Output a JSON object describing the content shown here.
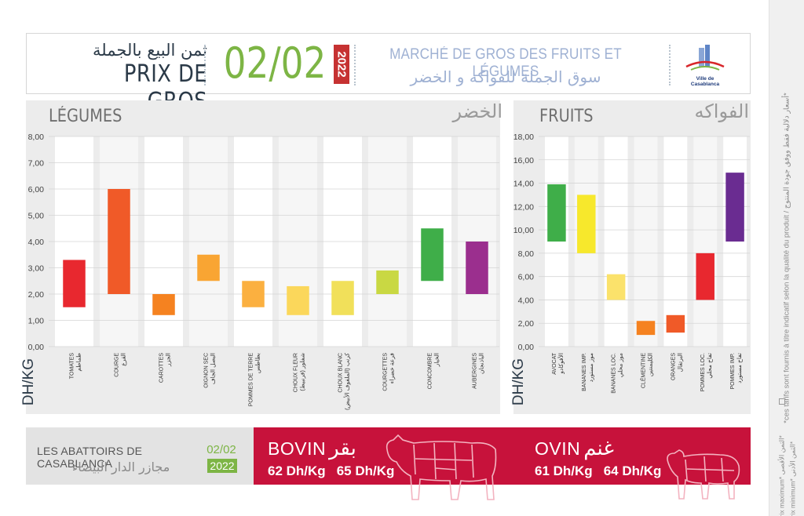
{
  "header": {
    "arabic_title": "ثمن البيع بالجملة",
    "title": "PRIX DE GROS",
    "date": "02/02",
    "year": "2022",
    "market_fr": "MARCHÉ DE GROS DES FRUITS ET LÉGUMES",
    "market_ar": "سوق الجملة للفواكه و الخضر",
    "logo_text": "Ville de Casablanca"
  },
  "legumes": {
    "title_fr": "LÉGUMES",
    "title_ar": "الخضر",
    "unit": "DH/KG"
  },
  "fruits": {
    "title_fr": "FRUITS",
    "title_ar": "الفواكه",
    "unit": "DH/KG"
  },
  "chart_data": [
    {
      "type": "bar",
      "title": "LÉGUMES",
      "ylabel": "DH/KG",
      "ylim": [
        0,
        8
      ],
      "yticks": [
        "0,00",
        "1,00",
        "2,00",
        "3,00",
        "4,00",
        "5,00",
        "6,00",
        "7,00",
        "8,00"
      ],
      "categories": [
        {
          "fr": "TOMATES",
          "ar": "طماطم"
        },
        {
          "fr": "COURGE",
          "ar": "القرع"
        },
        {
          "fr": "CAROTTES",
          "ar": "الجزر"
        },
        {
          "fr": "OIGNON SEC",
          "ar": "البصل الجاف"
        },
        {
          "fr": "POMMES DE TERRE",
          "ar": "بطاطس"
        },
        {
          "fr": "CHOUX FLEUR",
          "ar": "شفلور (قرنبيط)"
        },
        {
          "fr": "CHOUX BLANC",
          "ar": "كرنب (الملفوف الأبيض)"
        },
        {
          "fr": "COURGETTES",
          "ar": "قرعة خضراء"
        },
        {
          "fr": "CONCOMBRE",
          "ar": "الخيار"
        },
        {
          "fr": "AUBERGINES",
          "ar": "الباذنجان"
        }
      ],
      "series": [
        {
          "name": "Prix minimum",
          "values": [
            1.5,
            2.0,
            1.2,
            2.5,
            1.5,
            1.2,
            1.2,
            2.0,
            2.5,
            2.0
          ]
        },
        {
          "name": "Prix maximum",
          "values": [
            3.3,
            6.0,
            2.0,
            3.5,
            2.5,
            2.3,
            2.5,
            2.9,
            4.5,
            4.0
          ]
        }
      ],
      "colors": [
        "#e8282f",
        "#f05a28",
        "#f58220",
        "#f9a533",
        "#fbb040",
        "#fbd75b",
        "#f1e05a",
        "#c9d843",
        "#3fae49",
        "#9b2f8e"
      ]
    },
    {
      "type": "bar",
      "title": "FRUITS",
      "ylabel": "DH/KG",
      "ylim": [
        0,
        18
      ],
      "yticks": [
        "0,00",
        "2,00",
        "4,00",
        "6,00",
        "8,00",
        "10,00",
        "12,00",
        "14,00",
        "16,00",
        "18,00"
      ],
      "categories": [
        {
          "fr": "AVOCAT",
          "ar": "الأفوكادو"
        },
        {
          "fr": "BANANES IMP.",
          "ar": "موز مستورد"
        },
        {
          "fr": "BANANES LOC.",
          "ar": "موز محلي"
        },
        {
          "fr": "CLÉMENTINE",
          "ar": "الكليمنتين"
        },
        {
          "fr": "ORANGES",
          "ar": "البرتقال"
        },
        {
          "fr": "POMMES LOC.",
          "ar": "تفاح محلي"
        },
        {
          "fr": "POMMES IMP.",
          "ar": "تفاح مستورد"
        }
      ],
      "series": [
        {
          "name": "Prix minimum",
          "values": [
            9.0,
            8.0,
            4.0,
            1.0,
            1.2,
            4.0,
            9.0
          ]
        },
        {
          "name": "Prix maximum",
          "values": [
            13.9,
            13.0,
            6.2,
            2.2,
            2.7,
            8.0,
            14.9
          ]
        }
      ],
      "colors": [
        "#3fae49",
        "#f7e82c",
        "#fbe26b",
        "#f58220",
        "#f05a28",
        "#e8282f",
        "#6a2c91"
      ]
    }
  ],
  "abattoirs": {
    "name_fr": "LES ABATTOIRS DE CASABLANCA",
    "name_ar": "مجازر الدار البيضاء",
    "date": "02/02",
    "year": "2022"
  },
  "bovin": {
    "title": "BOVIN",
    "title_ar": "بقر",
    "price_min": "62 Dh/Kg",
    "price_max": "65 Dh/Kg"
  },
  "ovin": {
    "title": "OVIN",
    "title_ar": "غنم",
    "price_min": "61 Dh/Kg",
    "price_max": "64 Dh/Kg"
  },
  "sidebar": {
    "note": "*ces tarifs sont fournis à titre indicatif selon la qualité du produit / أسعار دلالية فقط ووفق جودة المنتوج*",
    "legend_max": "Prix maximum* الثمن الأقصى*",
    "legend_min": "Prix minimum* الثمن الأدنى*"
  },
  "colors": {
    "accent_green": "#7db545",
    "accent_red": "#c7123b",
    "year_red": "#c63232"
  }
}
